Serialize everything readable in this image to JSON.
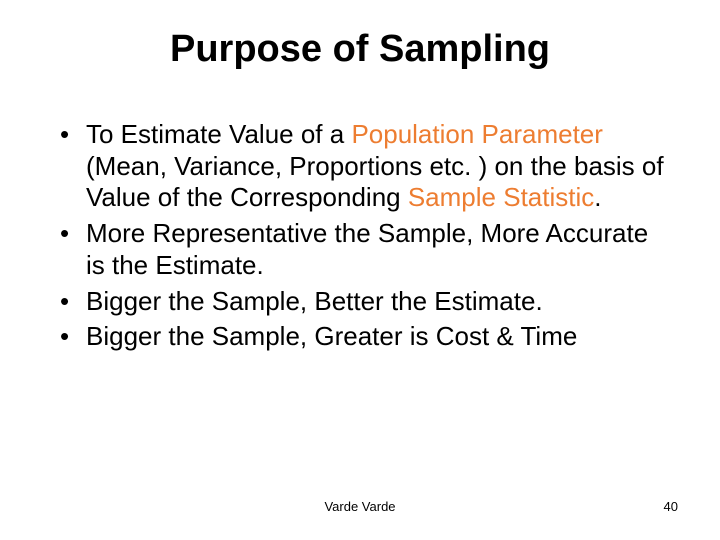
{
  "title": "Purpose of Sampling",
  "bullets": {
    "b1": {
      "t1": "To Estimate Value of a ",
      "h1": "Population Parameter",
      "t2": " (Mean, Variance, Proportions etc. ) on the basis of Value of the Corresponding ",
      "h2": "Sample Statistic",
      "t3": "."
    },
    "b2": "More Representative the Sample, More Accurate is the Estimate.",
    "b3": "Bigger the Sample, Better the Estimate.",
    "b4": "Bigger the Sample, Greater is Cost & Time"
  },
  "footer": {
    "center": "Varde Varde",
    "page": "40"
  },
  "colors": {
    "highlight": "#ed7d31",
    "text": "#000000",
    "background": "#ffffff"
  }
}
